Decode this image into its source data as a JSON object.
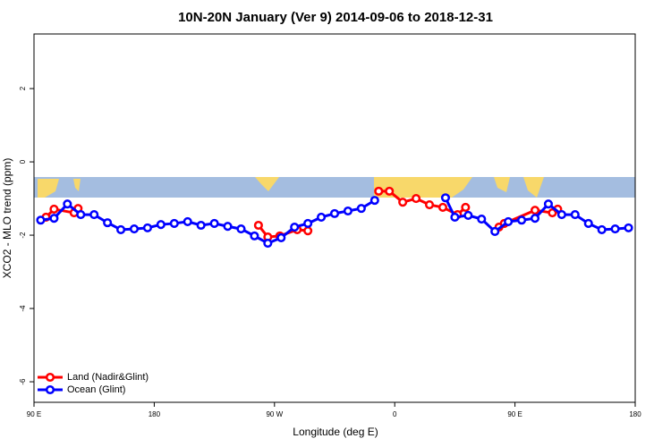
{
  "chart_data": {
    "type": "line",
    "title": "10N-20N January (Ver 9)   2014-09-06 to 2018-12-31",
    "x_label": "Longitude (deg E)",
    "y_label": "XCO2 - MLO trend (ppm)",
    "xlim": [
      90,
      540
    ],
    "ylim": [
      -6.56,
      3.49
    ],
    "xticks": [
      {
        "value": 90,
        "label": "90 E"
      },
      180,
      {
        "value": 270,
        "label": "90 W"
      },
      {
        "value": 360,
        "label": "0"
      },
      {
        "value": 450,
        "label": "90 E"
      },
      {
        "value": 540,
        "label": "180"
      }
    ],
    "yticks": [
      -6,
      -4,
      -2,
      0,
      2
    ],
    "legend": "bottom-left",
    "series": [
      {
        "name": "Land (Nadir&Glint)",
        "color": "#ff0000",
        "x": [
          99,
          105,
          120,
          123,
          190,
          258,
          265,
          274,
          287,
          295,
          320,
          348,
          356,
          366,
          376,
          386,
          396,
          407,
          413,
          425,
          438,
          442,
          465,
          478,
          482
        ],
        "values": [
          -1.51,
          -1.29,
          -1.39,
          -1.27,
          null,
          -1.73,
          -2.05,
          -2.02,
          -1.85,
          -1.88,
          null,
          -0.8,
          -0.8,
          -1.1,
          -1.0,
          -1.17,
          -1.24,
          -1.44,
          -1.24,
          null,
          -1.78,
          -1.68,
          -1.32,
          -1.39,
          -1.29
        ]
      },
      {
        "name": "Ocean (Glint)",
        "color": "#0000ff",
        "x": [
          95,
          105,
          115,
          125,
          135,
          145,
          155,
          165,
          175,
          185,
          195,
          205,
          215,
          225,
          235,
          245,
          255,
          265,
          275,
          285,
          295,
          305,
          315,
          325,
          335,
          345,
          370,
          398,
          405,
          415,
          425,
          435,
          445,
          455,
          465,
          475,
          485,
          495,
          505,
          515,
          525,
          535
        ],
        "values": [
          -1.59,
          -1.54,
          -1.15,
          -1.44,
          -1.44,
          -1.66,
          -1.85,
          -1.83,
          -1.8,
          -1.71,
          -1.68,
          -1.63,
          -1.73,
          -1.68,
          -1.76,
          -1.83,
          -2.02,
          -2.22,
          -2.07,
          -1.78,
          -1.68,
          -1.51,
          -1.41,
          -1.34,
          -1.27,
          -1.05,
          null,
          -0.98,
          -1.51,
          -1.46,
          -1.56,
          -1.9,
          -1.63,
          -1.59,
          -1.54,
          -1.15,
          -1.44,
          -1.44,
          -1.68,
          -1.85,
          -1.83,
          -1.8
        ]
      }
    ]
  }
}
